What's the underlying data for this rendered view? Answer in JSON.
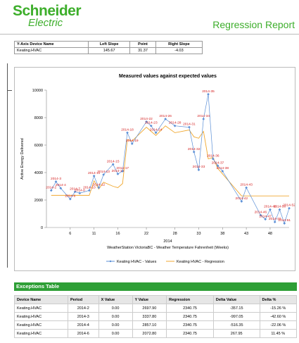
{
  "header": {
    "logo_top": "Schneider",
    "logo_bottom": "Electric",
    "title": "Regression Report"
  },
  "summary_table": {
    "columns": [
      "Y-Axis Device Name",
      "Left Slope",
      "Point",
      "Right Slope"
    ],
    "rows": [
      [
        "Keating.HVAC",
        "145.67",
        "31.37",
        "-4.03"
      ]
    ]
  },
  "chart_data": {
    "type": "line",
    "title": "Measured values against expected values",
    "y_label": "Active Energy Delivered",
    "x_label": "WeatherStation VictoriaBC - Weather Temperature Fahrenheit  (Weeks)",
    "x_group": "2014",
    "xlim": [
      1,
      52
    ],
    "ylim": [
      0,
      10000
    ],
    "xticks": [
      6,
      11,
      16,
      22,
      28,
      33,
      38,
      43,
      48
    ],
    "yticks": [
      0,
      2000,
      4000,
      6000,
      8000,
      10000
    ],
    "series": [
      {
        "name": "Keating HVAC - Values",
        "color": "#5b8fd6",
        "x": [
          2,
          3,
          4,
          6,
          7,
          8,
          10,
          11,
          12,
          13,
          15,
          16,
          17,
          18,
          19,
          22,
          23,
          24,
          26,
          28,
          31,
          32,
          33,
          34,
          35,
          36,
          37,
          38,
          42,
          43,
          46,
          47,
          48,
          49,
          50,
          51,
          52
        ],
        "labels": [
          "2014-2",
          "2014-3",
          "2014-4",
          "2014-6",
          "2014-7",
          "2014-8",
          "2014-10",
          "2014-11",
          "2014-12",
          "2014-13",
          "2014-15",
          "2014-16",
          "2014-17",
          "2014-18",
          "2014-19",
          "2014-22",
          "2014-23",
          "2014-24",
          "2014-26",
          "2014-28",
          "2014-31",
          "2014-32",
          "2014-33",
          "2014-34",
          "2014-35",
          "2014-36",
          "2014-37",
          "2014-38",
          "2014-42",
          "2014-43",
          "2014-46",
          "2014-47",
          "2014-48",
          "2014-49",
          "2014-50",
          "2014-51",
          "2014-52"
        ],
        "values": [
          2700,
          3340,
          2860,
          2070,
          2600,
          2500,
          2700,
          3750,
          2900,
          3850,
          4600,
          3900,
          4100,
          6900,
          6100,
          7700,
          7400,
          6900,
          7900,
          7400,
          7300,
          5500,
          4200,
          7900,
          9700,
          5000,
          4500,
          4100,
          1900,
          2900,
          900,
          600,
          1300,
          400,
          1300,
          300,
          1400
        ]
      },
      {
        "name": "Keating HVAC - Regression",
        "color": "#f0a830",
        "x": [
          2,
          3,
          4,
          6,
          7,
          8,
          10,
          11,
          12,
          13,
          15,
          16,
          17,
          18,
          19,
          22,
          23,
          24,
          26,
          28,
          31,
          32,
          33,
          34,
          35,
          36,
          37,
          38,
          42,
          43,
          46,
          47,
          48,
          49,
          50,
          51,
          52
        ],
        "values": [
          2340,
          2340,
          2340,
          2340,
          2340,
          2340,
          2340,
          3400,
          2800,
          3300,
          3000,
          2900,
          3200,
          6400,
          6300,
          7300,
          7000,
          6700,
          7400,
          6900,
          7100,
          6600,
          6500,
          7000,
          5000,
          5100,
          4300,
          3900,
          2300,
          2300,
          2300,
          2300,
          2300,
          2300,
          2300,
          2300,
          2300
        ]
      }
    ]
  },
  "exceptions": {
    "title": "Exceptions Table",
    "columns": [
      "Device Name",
      "Period",
      "X Value",
      "Y Value",
      "Regression",
      "Delta Value",
      "Delta %"
    ],
    "rows": [
      [
        "Keating.HVAC",
        "2014-2",
        "0.00",
        "2697.90",
        "2340.75",
        "-357.15",
        "-15.26 %"
      ],
      [
        "Keating.HVAC",
        "2014-3",
        "0.00",
        "3337.80",
        "2340.75",
        "-997.05",
        "-42.60 %"
      ],
      [
        "Keating.HVAC",
        "2014-4",
        "0.00",
        "2857.10",
        "2340.75",
        "-516.35",
        "-22.06 %"
      ],
      [
        "Keating.HVAC",
        "2014-6",
        "0.00",
        "2072.80",
        "2340.75",
        "267.95",
        "11.45 %"
      ]
    ]
  }
}
